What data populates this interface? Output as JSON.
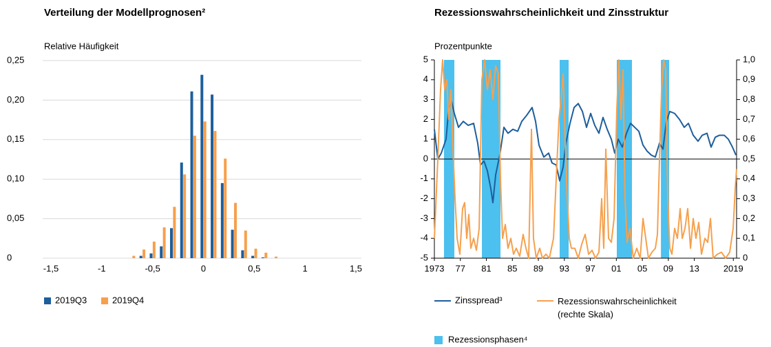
{
  "chart_data": [
    {
      "type": "bar",
      "title": "Verteilung der Modellprognosen²",
      "y_label": "Relative Häufigkeit",
      "x": [
        -0.7,
        -0.6,
        -0.5,
        -0.4,
        -0.3,
        -0.2,
        -0.1,
        0,
        0.1,
        0.2,
        0.3,
        0.4,
        0.5,
        0.6,
        0.7
      ],
      "series": [
        {
          "name": "2019Q3",
          "color": "#1d5e9c",
          "values": [
            0,
            0.003,
            0.006,
            0.015,
            0.038,
            0.121,
            0.211,
            0.232,
            0.207,
            0.095,
            0.036,
            0.01,
            0.003,
            0.001,
            0
          ]
        },
        {
          "name": "2019Q4",
          "color": "#f6a04d",
          "values": [
            0.003,
            0.011,
            0.021,
            0.039,
            0.065,
            0.106,
            0.155,
            0.173,
            0.161,
            0.126,
            0.07,
            0.035,
            0.012,
            0.007,
            0.002
          ]
        }
      ],
      "xlim": [
        -1.5,
        1.5
      ],
      "xticks": [
        {
          "value": -1.5,
          "label": "-1,5"
        },
        -1,
        {
          "value": -0.5,
          "label": "-0,5"
        },
        0,
        {
          "value": 0.5,
          "label": "0,5"
        },
        1,
        {
          "value": 1.5,
          "label": "1,5"
        }
      ],
      "ylim": [
        0,
        0.25
      ],
      "yticks": [
        0,
        {
          "value": 0.05,
          "label": "0,05"
        },
        {
          "value": 0.1,
          "label": "0,10"
        },
        {
          "value": 0.15,
          "label": "0,15"
        },
        {
          "value": 0.2,
          "label": "0,20"
        },
        {
          "value": 0.25,
          "label": "0,25"
        }
      ],
      "grid": true,
      "legend": "bottom-left"
    },
    {
      "type": "line",
      "title": "Rezessionswahrscheinlichkeit und Zinsstruktur",
      "y_label": "Prozentpunkte",
      "series": [
        {
          "name": "Zinsspread³",
          "color": "#1d5e9c",
          "x": [
            1973.0,
            1973.53,
            1974.06,
            1974.8,
            1975.22,
            1975.65,
            1976.07,
            1976.71,
            1977.45,
            1978.19,
            1979.04,
            1979.67,
            1980.1,
            1980.63,
            1981.16,
            1981.69,
            1982.0,
            1982.43,
            1983.06,
            1983.7,
            1984.33,
            1985.08,
            1985.82,
            1986.45,
            1987.19,
            1988.04,
            1988.57,
            1989.1,
            1989.84,
            1990.58,
            1991.11,
            1991.75,
            1992.28,
            1992.81,
            1993.23,
            1993.87,
            1994.5,
            1995.14,
            1995.78,
            1996.41,
            1997.05,
            1997.68,
            1998.32,
            1998.95,
            1999.59,
            2000.23,
            2000.75,
            2001.29,
            2001.92,
            2002.56,
            2003.19,
            2003.83,
            2004.46,
            2005.1,
            2005.73,
            2006.37,
            2007.0,
            2007.64,
            2008.17,
            2008.7,
            2009.23,
            2009.97,
            2010.71,
            2011.45,
            2012.09,
            2012.83,
            2013.57,
            2014.21,
            2014.95,
            2015.58,
            2016.22,
            2016.86,
            2017.6,
            2018.23,
            2018.87,
            2019.4
          ],
          "values": [
            1.5,
            0.0,
            0.3,
            1.0,
            2.6,
            2.9,
            2.3,
            1.6,
            1.9,
            1.7,
            1.8,
            0.8,
            -0.3,
            -0.1,
            -0.6,
            -1.5,
            -2.2,
            -0.8,
            0.2,
            1.6,
            1.3,
            1.5,
            1.4,
            1.9,
            2.2,
            2.6,
            1.9,
            0.7,
            0.1,
            0.3,
            -0.2,
            -0.3,
            -1.1,
            -0.4,
            0.8,
            1.8,
            2.6,
            2.8,
            2.4,
            1.6,
            2.3,
            1.7,
            1.3,
            2.1,
            1.5,
            1.0,
            0.3,
            1.0,
            0.6,
            1.3,
            1.8,
            1.6,
            1.4,
            0.7,
            0.4,
            0.2,
            0.1,
            0.8,
            0.5,
            1.9,
            2.4,
            2.3,
            2.0,
            1.6,
            1.8,
            1.2,
            0.9,
            1.2,
            1.3,
            0.6,
            1.1,
            1.2,
            1.2,
            1.0,
            0.6,
            0.2
          ]
        },
        {
          "name": "Rezessionswahrscheinlichkeit (rechte Skala)",
          "color": "#f6a04d",
          "axis": "y2",
          "x": [
            1973.0,
            1973.53,
            1973.95,
            1974.27,
            1974.59,
            1974.91,
            1975.22,
            1975.54,
            1975.86,
            1976.18,
            1976.5,
            1976.92,
            1977.34,
            1977.66,
            1977.98,
            1978.3,
            1978.61,
            1979.04,
            1979.46,
            1979.89,
            1980.31,
            1980.73,
            1981.16,
            1981.58,
            1982.0,
            1982.43,
            1982.85,
            1983.17,
            1983.49,
            1983.91,
            1984.33,
            1984.76,
            1985.18,
            1985.6,
            1986.13,
            1986.66,
            1987.09,
            1987.51,
            1987.94,
            1988.25,
            1988.68,
            1989.21,
            1989.63,
            1990.16,
            1990.69,
            1991.33,
            1991.75,
            1992.17,
            1992.49,
            1992.81,
            1993.13,
            1993.44,
            1993.76,
            1994.08,
            1994.61,
            1995.14,
            1995.67,
            1996.2,
            1996.73,
            1997.26,
            1997.79,
            1998.32,
            1998.74,
            1999.06,
            1999.38,
            1999.8,
            2000.23,
            2000.65,
            2001.07,
            2001.39,
            2001.71,
            2002.03,
            2002.34,
            2002.66,
            2003.08,
            2003.61,
            2004.14,
            2004.67,
            2005.1,
            2005.52,
            2005.94,
            2006.47,
            2007.0,
            2007.32,
            2007.64,
            2007.96,
            2008.28,
            2008.59,
            2008.91,
            2009.23,
            2009.55,
            2009.97,
            2010.39,
            2010.82,
            2011.14,
            2011.56,
            2011.98,
            2012.41,
            2012.83,
            2013.25,
            2013.68,
            2014.1,
            2014.63,
            2015.06,
            2015.48,
            2015.9,
            2016.54,
            2017.17,
            2017.81,
            2018.44,
            2018.97,
            2019.29,
            2019.5
          ],
          "values": [
            0.1,
            0.5,
            0.85,
            1.0,
            0.85,
            0.9,
            0.7,
            0.85,
            0.55,
            0.3,
            0.1,
            0.02,
            0.25,
            0.28,
            0.1,
            0.22,
            0.05,
            0.1,
            0.04,
            0.15,
            0.9,
            1.0,
            0.85,
            0.95,
            0.8,
            0.97,
            0.93,
            0.4,
            0.1,
            0.17,
            0.05,
            0.1,
            0.02,
            0.05,
            0.01,
            0.12,
            0.05,
            0.0,
            0.65,
            0.1,
            0.0,
            0.05,
            0.0,
            0.02,
            0.0,
            0.1,
            0.4,
            0.7,
            0.8,
            0.93,
            0.6,
            0.3,
            0.1,
            0.05,
            0.05,
            0.0,
            0.07,
            0.12,
            0.02,
            0.04,
            0.0,
            0.03,
            0.3,
            0.05,
            0.55,
            0.1,
            0.08,
            0.2,
            0.75,
            1.0,
            0.7,
            0.95,
            0.3,
            0.08,
            0.15,
            0.0,
            0.05,
            0.0,
            0.2,
            0.1,
            0.0,
            0.03,
            0.05,
            0.12,
            0.5,
            0.85,
            1.0,
            0.95,
            0.3,
            0.05,
            0.02,
            0.15,
            0.1,
            0.25,
            0.1,
            0.15,
            0.25,
            0.05,
            0.2,
            0.1,
            0.18,
            0.02,
            0.1,
            0.08,
            0.2,
            0.0,
            0.02,
            0.03,
            0.0,
            0.03,
            0.15,
            0.35,
            0.45
          ]
        }
      ],
      "recessions": {
        "name": "Rezessionsphasen⁴",
        "color": "#4cc0ee",
        "periods": [
          {
            "start": 1974.48,
            "end": 1976.07
          },
          {
            "start": 1980.31,
            "end": 1983.17
          },
          {
            "start": 1992.28,
            "end": 1993.66
          },
          {
            "start": 2001.07,
            "end": 2003.4
          },
          {
            "start": 2007.86,
            "end": 2009.13
          }
        ]
      },
      "xlim": [
        1973,
        2019.5
      ],
      "xticks": [
        1973,
        {
          "value": 1977,
          "label": "77"
        },
        {
          "value": 1981,
          "label": "81"
        },
        {
          "value": 1985,
          "label": "85"
        },
        {
          "value": 1989,
          "label": "89"
        },
        {
          "value": 1993,
          "label": "93"
        },
        {
          "value": 1997,
          "label": "97"
        },
        {
          "value": 2001,
          "label": "01"
        },
        {
          "value": 2005,
          "label": "05"
        },
        {
          "value": 2009,
          "label": "09"
        },
        {
          "value": 2013,
          "label": "13"
        },
        2019
      ],
      "ylim": [
        -5,
        5
      ],
      "yticks": [
        -5,
        -4,
        -3,
        -2,
        -1,
        0,
        1,
        2,
        3,
        4,
        5
      ],
      "y2lim": [
        0,
        1
      ],
      "y2ticks": [
        0,
        {
          "value": 0.1,
          "label": "0,1"
        },
        {
          "value": 0.2,
          "label": "0,2"
        },
        {
          "value": 0.3,
          "label": "0,3"
        },
        {
          "value": 0.4,
          "label": "0,4"
        },
        {
          "value": 0.5,
          "label": "0,5"
        },
        {
          "value": 0.6,
          "label": "0,6"
        },
        {
          "value": 0.7,
          "label": "0,7"
        },
        {
          "value": 0.8,
          "label": "0,8"
        },
        {
          "value": 0.9,
          "label": "0,9"
        },
        {
          "value": 1,
          "label": "1,0"
        }
      ],
      "zero_line": true,
      "grid": false,
      "legend": "bottom-left"
    }
  ]
}
